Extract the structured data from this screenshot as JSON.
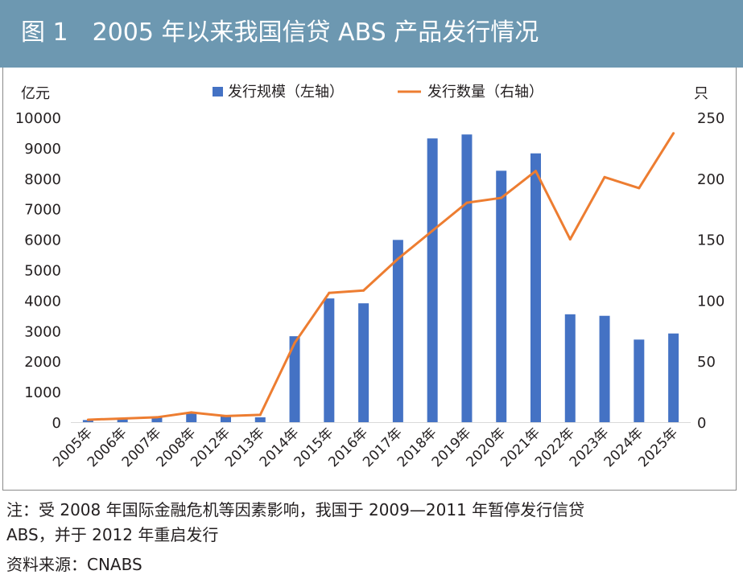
{
  "header": {
    "title": "图 1　2005 年以来我国信贷 ABS 产品发行情况"
  },
  "notes": {
    "line1": "注：受 2008 年国际金融危机等因素影响，我国于 2009—2011 年暂停发行信贷",
    "line2": "ABS，并于 2012 年重启发行",
    "source": "资料来源：CNABS"
  },
  "colors": {
    "banner": "#6d98b1",
    "bar": "#4472c4",
    "line": "#ed7d31"
  },
  "chart_data": {
    "type": "bar",
    "categories": [
      "2005年",
      "2006年",
      "2007年",
      "2008年",
      "2012年",
      "2013年",
      "2014年",
      "2015年",
      "2016年",
      "2017年",
      "2018年",
      "2019年",
      "2020年",
      "2021年",
      "2022年",
      "2023年",
      "2024年",
      "2025年"
    ],
    "left_axis_unit": "亿元",
    "right_axis_unit": "只",
    "left_ylim": [
      0,
      10000
    ],
    "left_ticks": [
      0,
      1000,
      2000,
      3000,
      4000,
      5000,
      6000,
      7000,
      8000,
      9000,
      10000
    ],
    "right_ylim": [
      0,
      250
    ],
    "right_ticks": [
      0,
      50,
      100,
      150,
      200,
      250
    ],
    "legend_position": "top",
    "grid": false,
    "series": [
      {
        "name": "发行规模（左轴）",
        "type": "bar",
        "axis": "left",
        "values": [
          70,
          115,
          180,
          300,
          190,
          160,
          2820,
          4060,
          3900,
          5980,
          9310,
          9440,
          8250,
          8820,
          3540,
          3490,
          2710,
          2910
        ]
      },
      {
        "name": "发行数量（右轴）",
        "type": "line",
        "axis": "right",
        "values": [
          2,
          3,
          4,
          8,
          5,
          6,
          65,
          106,
          108,
          134,
          157,
          180,
          184,
          206,
          150,
          201,
          192,
          237
        ]
      }
    ]
  }
}
